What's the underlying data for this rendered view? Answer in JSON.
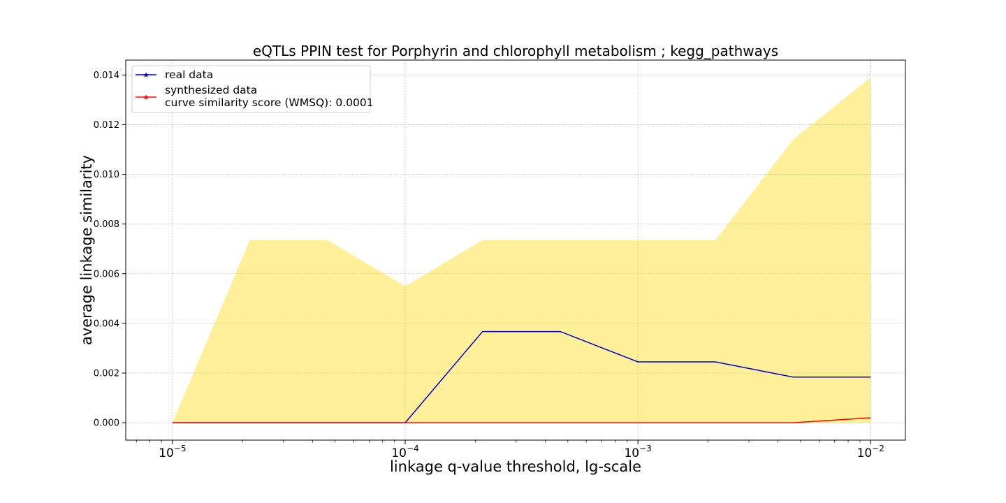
{
  "chart_data": {
    "type": "line",
    "title": "eQTLs PPIN test for Porphyrin and chlorophyll metabolism ; kegg_pathways",
    "xlabel": "linkage q-value threshold, lg-scale",
    "ylabel": "average linkage similarity",
    "xscale": "log",
    "xlim": [
      6.3e-06,
      0.0141
    ],
    "ylim": [
      -0.0007,
      0.0146
    ],
    "grid": true,
    "legend_position": "top-left",
    "x": [
      1e-05,
      2.15e-05,
      4.64e-05,
      0.0001,
      0.000215,
      0.000464,
      0.001,
      0.00215,
      0.00464,
      0.01
    ],
    "xticks": [
      {
        "base": "10",
        "exp": "−5",
        "value": 1e-05
      },
      {
        "base": "10",
        "exp": "−4",
        "value": 0.0001
      },
      {
        "base": "10",
        "exp": "−3",
        "value": 0.001
      },
      {
        "base": "10",
        "exp": "−2",
        "value": 0.01
      }
    ],
    "yticks": [
      "0.000",
      "0.002",
      "0.004",
      "0.006",
      "0.008",
      "0.010",
      "0.012",
      "0.014"
    ],
    "series": [
      {
        "name": "real data",
        "color": "#0000cc",
        "values": [
          0,
          0,
          0,
          0,
          0.00367,
          0.00367,
          0.00245,
          0.00245,
          0.00184,
          0.00184
        ]
      },
      {
        "name": "synthesized data",
        "color": "#ff0000",
        "values": [
          0,
          0,
          0,
          0,
          0,
          0,
          0,
          0,
          0,
          0.0002
        ]
      }
    ],
    "band": {
      "color": "#ffd700",
      "opacity": 0.4,
      "lower": [
        0,
        0,
        0,
        0,
        0,
        0,
        0,
        0,
        0,
        0
      ],
      "upper": [
        0,
        0.00735,
        0.00735,
        0.0055,
        0.00735,
        0.00735,
        0.00735,
        0.00735,
        0.0114,
        0.0139
      ]
    },
    "legend": {
      "entries": [
        "real data",
        "synthesized data"
      ],
      "extra_text": "curve similarity score (WMSQ): 0.0001"
    }
  }
}
